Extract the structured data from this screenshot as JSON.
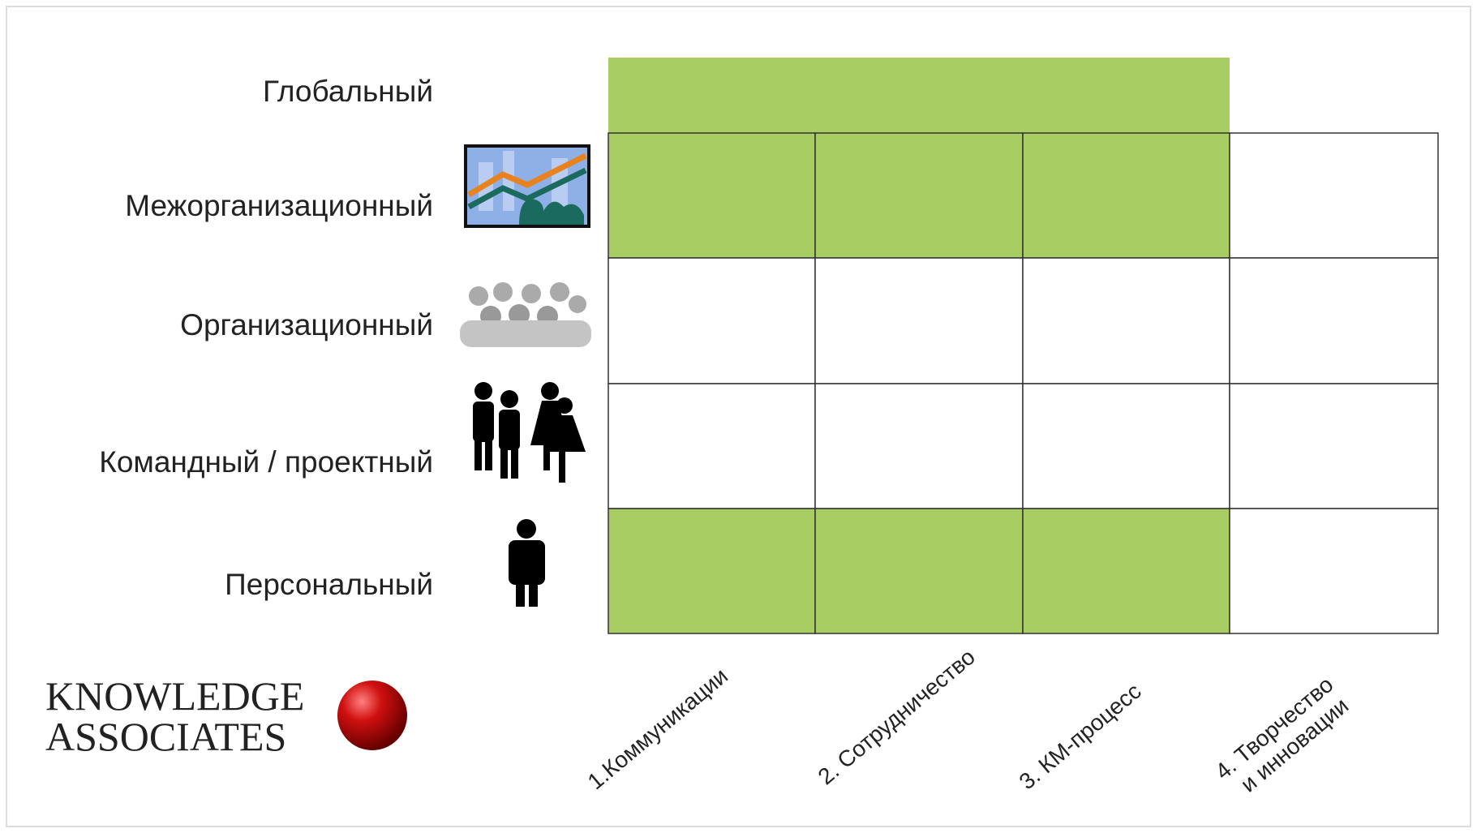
{
  "rows": [
    "Глобальный",
    "Межорганизационный",
    "Организационный",
    "Командный  / проектный",
    "Персональный"
  ],
  "columns": [
    [
      "1.Коммуникации"
    ],
    [
      "2. Сотрудничество"
    ],
    [
      "3. КМ-процесс"
    ],
    [
      "4. Творчество",
      "и инновации"
    ]
  ],
  "logo": {
    "line1": "KNOWLEDGE",
    "line2": "ASSOCIATES"
  }
}
